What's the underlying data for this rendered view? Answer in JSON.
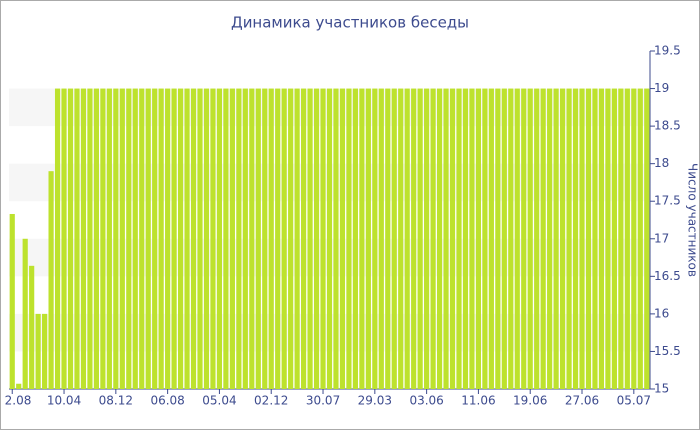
{
  "chart_data": {
    "type": "bar",
    "title": "Динамика участников беседы",
    "y_label": "Число участников",
    "color": "#bde22d",
    "grid": true,
    "y_axis_side": "right",
    "categories": [
      "2.08",
      null,
      null,
      null,
      null,
      null,
      null,
      null,
      "10.04",
      null,
      null,
      null,
      null,
      null,
      null,
      null,
      "08.12",
      null,
      null,
      null,
      null,
      null,
      null,
      null,
      "06.08",
      null,
      null,
      null,
      null,
      null,
      null,
      null,
      "05.04",
      null,
      null,
      null,
      null,
      null,
      null,
      null,
      "02.12",
      null,
      null,
      null,
      null,
      null,
      null,
      null,
      "30.07",
      null,
      null,
      null,
      null,
      null,
      null,
      null,
      "29.03",
      null,
      null,
      null,
      null,
      null,
      null,
      null,
      "03.06",
      null,
      null,
      null,
      null,
      null,
      null,
      null,
      "11.06",
      null,
      null,
      null,
      null,
      null,
      null,
      null,
      "19.06",
      null,
      null,
      null,
      null,
      null,
      null,
      null,
      "27.06",
      null,
      null,
      null,
      null,
      null,
      null,
      null,
      "05.07",
      null,
      null
    ],
    "values": [
      17.33,
      15.07,
      17.0,
      16.64,
      16.0,
      16.0,
      17.9,
      19,
      19,
      19,
      19,
      19,
      19,
      19,
      19,
      19,
      19,
      19,
      19,
      19,
      19,
      19,
      19,
      19,
      19,
      19,
      19,
      19,
      19,
      19,
      19,
      19,
      19,
      19,
      19,
      19,
      19,
      19,
      19,
      19,
      19,
      19,
      19,
      19,
      19,
      19,
      19,
      19,
      19,
      19,
      19,
      19,
      19,
      19,
      19,
      19,
      19,
      19,
      19,
      19,
      19,
      19,
      19,
      19,
      19,
      19,
      19,
      19,
      19,
      19,
      19,
      19,
      19,
      19,
      19,
      19,
      19,
      19,
      19,
      19,
      19,
      19,
      19,
      19,
      19,
      19,
      19,
      19,
      19,
      19,
      19,
      19,
      19,
      19,
      19,
      19,
      19,
      19,
      19
    ],
    "ylim": [
      15,
      19.5
    ],
    "yticks": [
      15,
      15.5,
      16,
      16.5,
      17,
      17.5,
      18,
      18.5,
      19,
      19.5
    ]
  }
}
